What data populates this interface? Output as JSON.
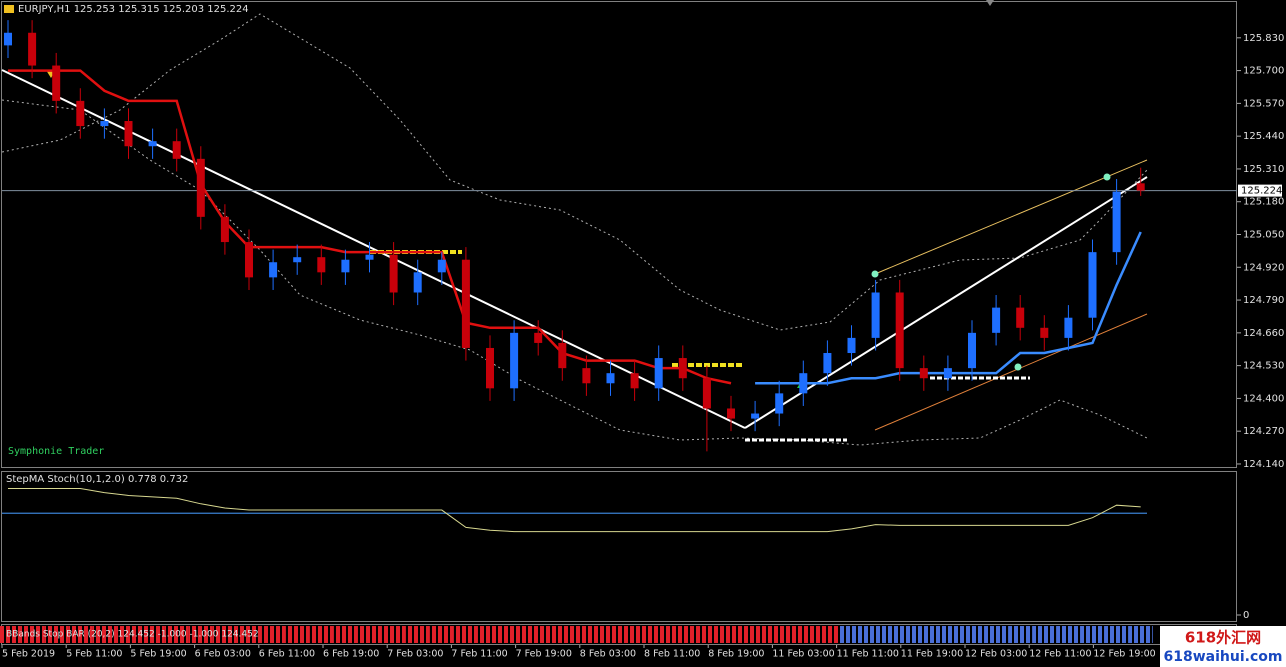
{
  "header": {
    "title": "EURJPY,H1  125.253 125.315 125.203 125.224"
  },
  "x_axis": {
    "labels": [
      "5 Feb 2019",
      "5 Feb 11:00",
      "5 Feb 19:00",
      "6 Feb 03:00",
      "6 Feb 11:00",
      "6 Feb 19:00",
      "7 Feb 03:00",
      "7 Feb 11:00",
      "7 Feb 19:00",
      "8 Feb 03:00",
      "8 Feb 11:00",
      "8 Feb 19:00",
      "11 Feb 03:00",
      "11 Feb 11:00",
      "11 Feb 19:00",
      "12 Feb 03:00",
      "12 Feb 11:00",
      "12 Feb 19:00"
    ]
  },
  "watermark": {
    "cn": "618外汇网",
    "url": "618waihui.com"
  },
  "chart_data": [
    {
      "type": "candlestick",
      "annotation": "Symphonie Trader",
      "up_color": "#1e6fff",
      "down_color": "#c8000a",
      "open": [
        125.8,
        125.85,
        125.72,
        125.58,
        125.48,
        125.5,
        125.4,
        125.42,
        125.35,
        125.12,
        125.02,
        124.88,
        124.94,
        124.96,
        124.9,
        124.95,
        124.97,
        124.82,
        124.9,
        124.95,
        124.6,
        124.44,
        124.66,
        124.62,
        124.52,
        124.46,
        124.5,
        124.44,
        124.56,
        124.48,
        124.36,
        124.32,
        124.34,
        124.42,
        124.5,
        124.58,
        124.64,
        124.82,
        124.52,
        124.48,
        124.52,
        124.66,
        124.76,
        124.68,
        124.64,
        124.72,
        124.98,
        125.253
      ],
      "high": [
        125.9,
        125.9,
        125.77,
        125.63,
        125.55,
        125.55,
        125.47,
        125.47,
        125.4,
        125.17,
        125.07,
        124.99,
        125.01,
        125.01,
        124.99,
        125.02,
        125.02,
        124.95,
        124.98,
        125.0,
        124.65,
        124.71,
        124.71,
        124.67,
        124.57,
        124.55,
        124.55,
        124.61,
        124.61,
        124.53,
        124.41,
        124.39,
        124.47,
        124.55,
        124.63,
        124.69,
        124.87,
        124.87,
        124.57,
        124.57,
        124.71,
        124.81,
        124.81,
        124.73,
        124.77,
        125.03,
        125.27,
        125.315
      ],
      "low": [
        125.75,
        125.67,
        125.53,
        125.43,
        125.43,
        125.35,
        125.35,
        125.3,
        125.07,
        124.97,
        124.83,
        124.83,
        124.89,
        124.85,
        124.85,
        124.9,
        124.77,
        124.77,
        124.85,
        124.55,
        124.39,
        124.39,
        124.57,
        124.47,
        124.41,
        124.41,
        124.39,
        124.39,
        124.43,
        124.19,
        124.27,
        124.27,
        124.29,
        124.37,
        124.45,
        124.53,
        124.59,
        124.47,
        124.43,
        124.43,
        124.47,
        124.61,
        124.63,
        124.59,
        124.59,
        124.67,
        124.93,
        125.203
      ],
      "close": [
        125.85,
        125.72,
        125.58,
        125.48,
        125.5,
        125.4,
        125.42,
        125.35,
        125.12,
        125.02,
        124.88,
        124.94,
        124.96,
        124.9,
        124.95,
        124.97,
        124.82,
        124.9,
        124.95,
        124.6,
        124.44,
        124.66,
        124.62,
        124.52,
        124.46,
        124.5,
        124.44,
        124.56,
        124.48,
        124.36,
        124.32,
        124.34,
        124.42,
        124.5,
        124.58,
        124.64,
        124.82,
        124.52,
        124.48,
        124.52,
        124.66,
        124.76,
        124.68,
        124.64,
        124.72,
        124.98,
        125.22,
        125.224
      ],
      "series": [
        {
          "color": "#e01010",
          "values": [
            125.7,
            125.7,
            125.7,
            125.7,
            125.62,
            125.58,
            125.58,
            125.58,
            125.25,
            125.1,
            125.0,
            125.0,
            125.0,
            125.0,
            124.98,
            124.98,
            124.98,
            124.98,
            124.98,
            124.7,
            124.68,
            124.68,
            124.68,
            124.58,
            124.55,
            124.55,
            124.55,
            124.52,
            124.52,
            124.48,
            124.46,
            null,
            null,
            null,
            null,
            null,
            null,
            null,
            null,
            null,
            null,
            null,
            null,
            null,
            null,
            null,
            null,
            null
          ]
        },
        {
          "color": "#3a8cff",
          "values": [
            null,
            null,
            null,
            null,
            null,
            null,
            null,
            null,
            null,
            null,
            null,
            null,
            null,
            null,
            null,
            null,
            null,
            null,
            null,
            null,
            null,
            null,
            null,
            null,
            null,
            null,
            null,
            null,
            null,
            null,
            null,
            124.46,
            124.46,
            124.46,
            124.46,
            124.48,
            124.48,
            124.5,
            124.5,
            124.5,
            124.5,
            124.5,
            124.58,
            124.58,
            124.6,
            124.62,
            124.85,
            125.06
          ]
        }
      ],
      "current_price": {
        "value": 125.224,
        "label": "125.224"
      },
      "ylim": [
        124.124,
        125.972
      ],
      "yticks": [
        {
          "value": 125.83,
          "label": "125.830"
        },
        {
          "value": 125.7,
          "label": "125.700"
        },
        {
          "value": 125.57,
          "label": "125.570"
        },
        {
          "value": 125.44,
          "label": "125.440"
        },
        {
          "value": 125.31,
          "label": "125.310"
        },
        {
          "value": 125.18,
          "label": "125.180"
        },
        {
          "value": 125.05,
          "label": "125.050"
        },
        {
          "value": 124.92,
          "label": "124.920"
        },
        {
          "value": 124.79,
          "label": "124.790"
        },
        {
          "value": 124.66,
          "label": "124.660"
        },
        {
          "value": 124.53,
          "label": "124.530"
        },
        {
          "value": 124.4,
          "label": "124.400"
        },
        {
          "value": 124.27,
          "label": "124.270"
        },
        {
          "value": 124.14,
          "label": "124.140"
        }
      ]
    },
    {
      "type": "line",
      "title": "StepMA Stoch(10,1,2.0) 0.778 0.732",
      "series": [
        {
          "color": "#d8d890",
          "values": [
            0.91,
            0.91,
            0.91,
            0.91,
            0.88,
            0.86,
            0.85,
            0.84,
            0.8,
            0.77,
            0.755,
            0.755,
            0.755,
            0.755,
            0.755,
            0.755,
            0.755,
            0.755,
            0.755,
            0.63,
            0.61,
            0.6,
            0.6,
            0.6,
            0.6,
            0.6,
            0.6,
            0.6,
            0.6,
            0.6,
            0.6,
            0.6,
            0.6,
            0.6,
            0.6,
            0.62,
            0.65,
            0.645,
            0.645,
            0.645,
            0.645,
            0.645,
            0.645,
            0.645,
            0.645,
            0.7,
            0.79,
            0.778
          ]
        }
      ],
      "level": 0.732,
      "level_color": "#3a7fd0",
      "ylim": [
        0,
        1
      ],
      "yticks": [
        0
      ]
    },
    {
      "type": "bar",
      "title": "BBands Stop BAR (20,2) 124.452 -1.000 -1.000 124.452",
      "up_color": "#4a6fd8",
      "down_color": "#e0202a",
      "values": [
        -1,
        -1,
        -1,
        -1,
        -1,
        -1,
        -1,
        -1,
        -1,
        -1,
        -1,
        -1,
        -1,
        -1,
        -1,
        -1,
        -1,
        -1,
        -1,
        -1,
        -1,
        -1,
        -1,
        -1,
        -1,
        -1,
        -1,
        -1,
        -1,
        -1,
        -1,
        -1,
        -1,
        -1,
        -1,
        1,
        1,
        1,
        1,
        1,
        1,
        1,
        1,
        1,
        1,
        1,
        1,
        1
      ]
    }
  ]
}
